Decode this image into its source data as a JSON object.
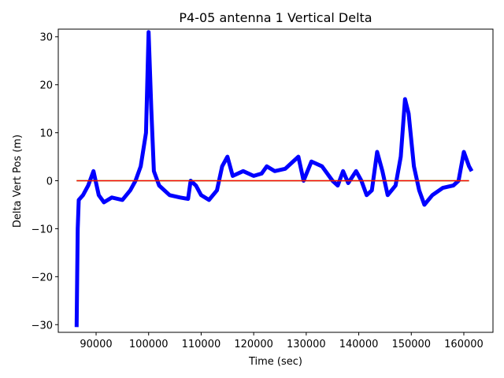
{
  "chart_data": {
    "type": "line",
    "title": "P4-05 antenna 1 Vertical Delta",
    "x_label": "Time (sec)",
    "y_label": "Delta Vert Pos (m)",
    "xlim": [
      82800,
      165550
    ],
    "ylim": [
      -31.6,
      31.6
    ],
    "xticks": [
      90000,
      100000,
      110000,
      120000,
      130000,
      140000,
      150000,
      160000
    ],
    "yticks": [
      {
        "value": -30,
        "label": "−30"
      },
      {
        "value": -20,
        "label": "−20"
      },
      {
        "value": -10,
        "label": "−10"
      },
      0,
      10,
      20,
      30
    ],
    "series": [
      {
        "color": "#0000ff",
        "x": [
          86300,
          86400,
          86500,
          86700,
          87500,
          88500,
          89500,
          90500,
          91500,
          93000,
          95000,
          96500,
          97500,
          98500,
          99500,
          100000,
          100500,
          101000,
          102000,
          104000,
          106000,
          107500,
          108000,
          109000,
          110000,
          111500,
          113000,
          114000,
          115000,
          116000,
          118000,
          120000,
          121500,
          122500,
          124000,
          126000,
          127500,
          128500,
          129500,
          131000,
          133000,
          135000,
          136000,
          137000,
          138000,
          139500,
          140500,
          141500,
          142500,
          143500,
          144500,
          145500,
          147000,
          148000,
          148800,
          149500,
          150500,
          151500,
          152500,
          154000,
          156000,
          158000,
          159000,
          160000,
          161000,
          161500
        ],
        "values": [
          -30.5,
          -20,
          -10,
          -4,
          -3,
          -1,
          2,
          -3,
          -4.5,
          -3.5,
          -4,
          -2,
          0,
          3,
          10,
          31,
          15,
          2,
          -1,
          -3,
          -3.5,
          -3.8,
          0,
          -1,
          -3,
          -4,
          -2,
          3,
          5,
          1,
          2,
          1,
          1.5,
          3,
          2,
          2.5,
          4,
          5,
          0,
          4,
          3,
          0,
          -1,
          2,
          -0.5,
          2,
          0,
          -3,
          -2,
          6,
          2,
          -3,
          -1,
          5,
          17,
          14,
          3,
          -2,
          -5,
          -3,
          -1.5,
          -1,
          0,
          6,
          3,
          2
        ]
      },
      {
        "color": "#00ff00",
        "x": [
          86300,
          161000
        ],
        "values": [
          0,
          0
        ]
      },
      {
        "color": "#ff0000",
        "x": [
          86300,
          161000
        ],
        "values": [
          0,
          0
        ]
      }
    ]
  }
}
